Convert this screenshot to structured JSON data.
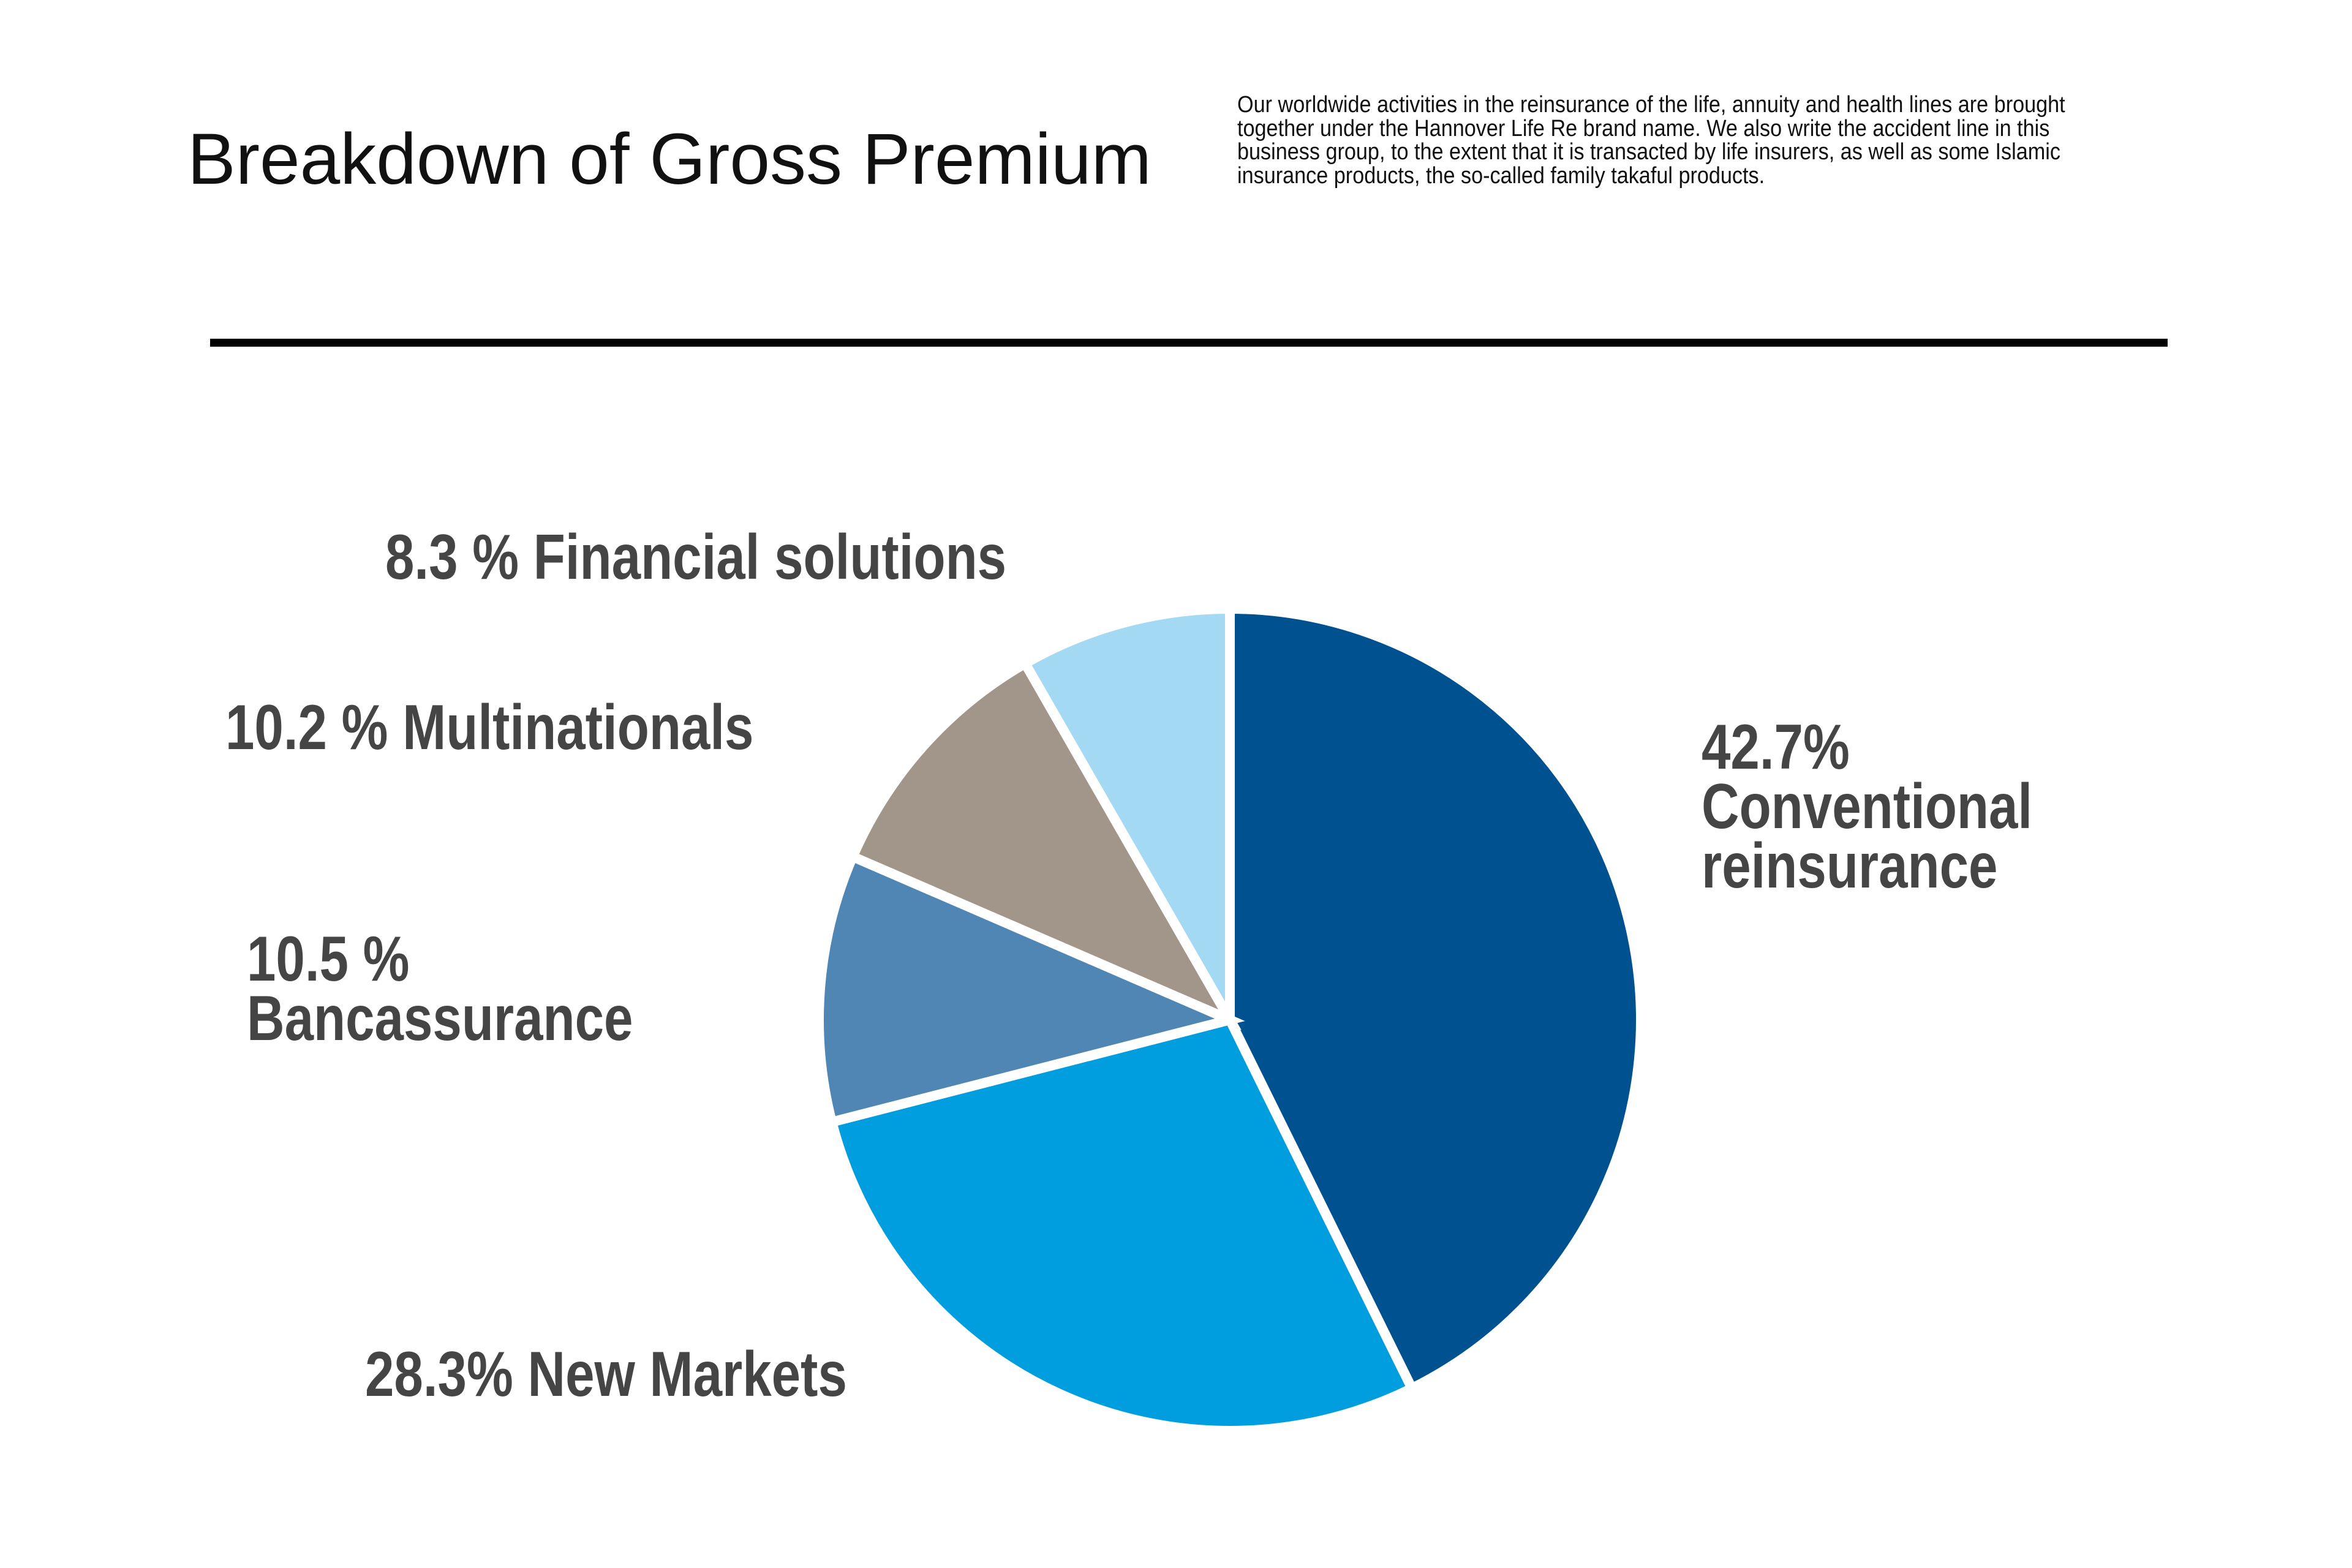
{
  "header": {
    "title": "Breakdown of Gross Premium",
    "description": "Our worldwide activities in the reinsurance of the life, annuity and health lines are brought together under the Hannover Life Re brand name. We also write the accident line in this business group, to the extent that it is transacted by life insurers, as well as some Islamic insurance products, the so-called family takaful products."
  },
  "chart_data": {
    "type": "pie",
    "title": "Breakdown of Gross Premium",
    "start_angle": "12 o'clock, clockwise",
    "slices": [
      {
        "name": "Conventional reinsurance",
        "value": 42.7,
        "color": "#00518f",
        "label_lines": [
          "42.7%",
          "Conventional",
          "reinsurance"
        ]
      },
      {
        "name": "New Markets",
        "value": 28.3,
        "color": "#009ddf",
        "label_lines": [
          "28.3% New Markets"
        ]
      },
      {
        "name": "Bancassurance",
        "value": 10.5,
        "color": "#4f86b4",
        "label_lines": [
          "10.5 %",
          "Bancassurance"
        ]
      },
      {
        "name": "Multinationals",
        "value": 10.2,
        "color": "#a29589",
        "label_lines": [
          "10.2 % Multinationals"
        ]
      },
      {
        "name": "Financial solutions",
        "value": 8.3,
        "color": "#a4d9f4",
        "label_lines": [
          "8.3 % Financial solutions"
        ]
      }
    ]
  }
}
